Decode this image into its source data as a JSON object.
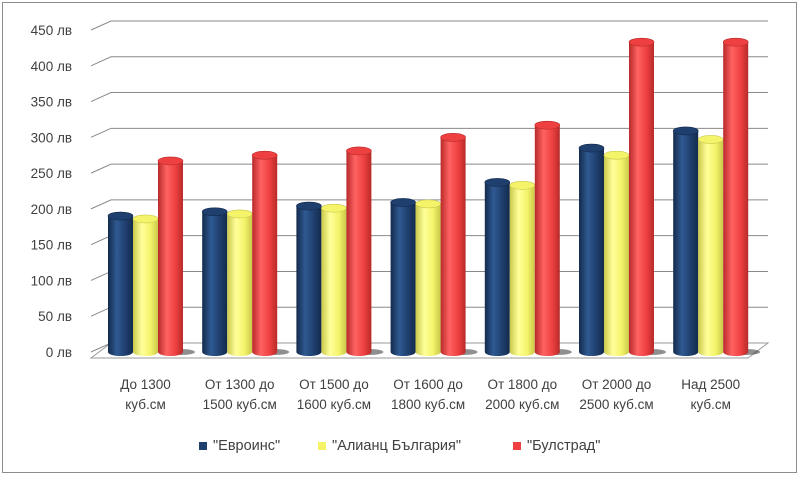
{
  "chart_data": {
    "type": "bar",
    "style": "3d-cylinder",
    "title": "",
    "xlabel": "",
    "ylabel": "",
    "ylim": [
      0,
      450
    ],
    "ytick_step": 50,
    "ytick_labels": [
      "0 лв",
      "50 лв",
      "100 лв",
      "150 лв",
      "200 лв",
      "250 лв",
      "300 лв",
      "350 лв",
      "400 лв",
      "450 лв"
    ],
    "grid": true,
    "legend_position": "bottom",
    "categories": [
      [
        "До 1300",
        "куб.см"
      ],
      [
        "От 1300 до",
        "1500 куб.см"
      ],
      [
        "От 1500 до",
        "1600 куб.см"
      ],
      [
        "От 1600 до",
        "1800 куб.см"
      ],
      [
        "От 1800 до",
        "2000 куб.см"
      ],
      [
        "От 2000 до",
        "2500 куб.см"
      ],
      [
        "Над 2500",
        "куб.см"
      ]
    ],
    "series": [
      {
        "name": "\"Евроинс\"",
        "color": "#1F3F6E",
        "light": "#2F5A92",
        "dark": "#132a4c",
        "values": [
          190,
          196,
          204,
          209,
          237,
          285,
          309
        ]
      },
      {
        "name": "\"Алианц България\"",
        "color": "#F4F36A",
        "light": "#FFFF9A",
        "dark": "#c9c84a",
        "values": [
          186,
          193,
          201,
          207,
          233,
          275,
          297
        ]
      },
      {
        "name": "\"Булстрад\"",
        "color": "#EE4040",
        "light": "#FF6262",
        "dark": "#b82a2a",
        "values": [
          267,
          275,
          281,
          300,
          317,
          433,
          433
        ]
      }
    ]
  },
  "legend": {
    "items": [
      {
        "label": "\"Евроинс\"",
        "color": "#1F3F6E"
      },
      {
        "label": "\"Алианц България\"",
        "color": "#F4F36A"
      },
      {
        "label": "\"Булстрад\"",
        "color": "#EE4040"
      }
    ]
  }
}
